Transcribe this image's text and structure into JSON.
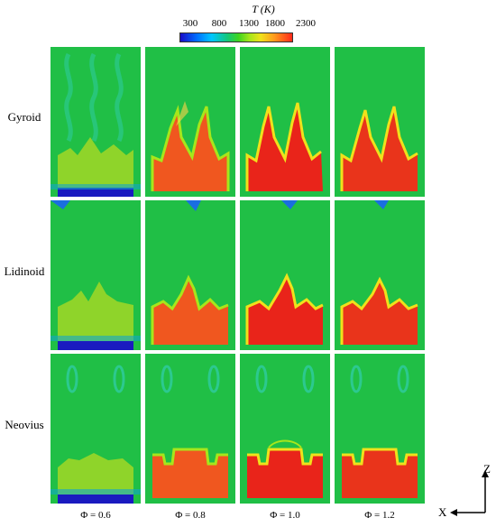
{
  "colorbar": {
    "title": "T (K)",
    "ticks": [
      "300",
      "800",
      "1300",
      "1800",
      "2300"
    ]
  },
  "rows": [
    "Gyroid",
    "Lidinoid",
    "Neovius"
  ],
  "columns": [
    "Φ = 0.6",
    "Φ = 0.8",
    "Φ = 1.0",
    "Φ = 1.2"
  ],
  "axes": {
    "vertical": "Z",
    "horizontal": "X"
  },
  "colors": {
    "cold": "#1a1ac0",
    "background": "#1fbe3e",
    "mid": "#9bd82a",
    "hot": "#f04b1e",
    "hottest": "#e9241a"
  }
}
